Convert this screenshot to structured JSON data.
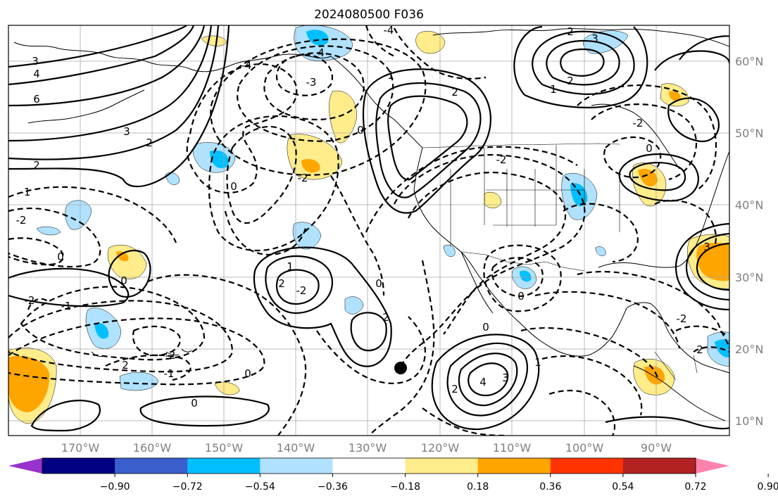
{
  "title": "2024080500 F036",
  "map": {
    "longitude_labels": [
      "170°W",
      "160°W",
      "150°W",
      "140°W",
      "130°W",
      "120°W",
      "110°W",
      "100°W",
      "90°W"
    ],
    "latitude_labels": [
      "60°N",
      "50°N",
      "40°N",
      "30°N",
      "20°N",
      "10°N"
    ],
    "contour_labels": [
      "-4",
      "4",
      "3",
      "6",
      "4",
      "3",
      "2",
      "2",
      "-1",
      "-2",
      "0",
      "-2",
      "-1",
      "0",
      "-4",
      "-3",
      "1",
      "2",
      "0",
      "-2",
      "2",
      "3",
      "1",
      "2",
      "-2",
      "1",
      "-2",
      "0",
      "2",
      "2",
      "0",
      "-2",
      "0",
      "0",
      "2",
      "4",
      "3",
      "0",
      "1",
      "0",
      "-2",
      "0",
      "-2",
      "3",
      "2",
      "2",
      "-1"
    ],
    "marker": "station-dot"
  },
  "colorbar": {
    "tick_labels": [
      "−0.90",
      "−0.72",
      "−0.54",
      "−0.36",
      "−0.18",
      "0.18",
      "0.36",
      "0.54",
      "0.72",
      "0.90"
    ],
    "colors": [
      "#9932cc",
      "#000080",
      "#3a5fcd",
      "#00bfff",
      "#b0e2ff",
      "#ffffff",
      "#ffec8b",
      "#ffa500",
      "#ff3300",
      "#b22222",
      "#ff82ab"
    ]
  }
}
